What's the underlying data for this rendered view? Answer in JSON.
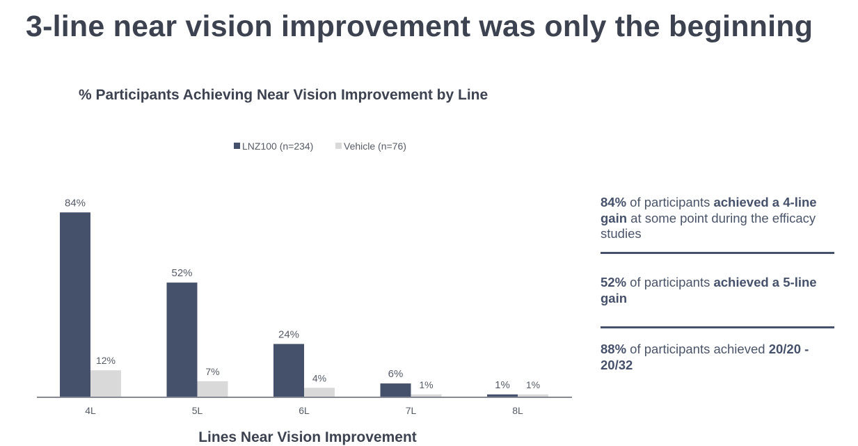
{
  "page": {
    "title": "3-line near vision improvement was only the beginning"
  },
  "chart_data": {
    "type": "bar",
    "title": "% Participants Achieving Near Vision Improvement by Line",
    "xlabel": "Lines Near Vision Improvement",
    "ylabel": "",
    "ylim": [
      0,
      100
    ],
    "grid": false,
    "legend_position": "top-center",
    "categories": [
      "4L",
      "5L",
      "6L",
      "7L",
      "8L"
    ],
    "series": [
      {
        "name": "LNZ100 (n=234)",
        "color": "#45516a",
        "values": [
          84,
          52,
          24,
          6,
          1
        ],
        "labels": [
          "84%",
          "52%",
          "24%",
          "6%",
          "1%"
        ]
      },
      {
        "name": "Vehicle (n=76)",
        "color": "#d9d9d9",
        "values": [
          12,
          7,
          4,
          1,
          1
        ],
        "labels": [
          "12%",
          "7%",
          "4%",
          "1%",
          "1%"
        ]
      }
    ]
  },
  "callouts": [
    {
      "pct": "84%",
      "text1": " of participants ",
      "bold1": "achieved a 4-line gain",
      "text2": " at some point during the efficacy studies"
    },
    {
      "pct": "52%",
      "text1": " of participants ",
      "bold1": "achieved a 5-line gain",
      "text2": ""
    },
    {
      "pct": "88%",
      "text1": " of participants achieved ",
      "bold1": "20/20 - 20/32",
      "text2": ""
    }
  ]
}
